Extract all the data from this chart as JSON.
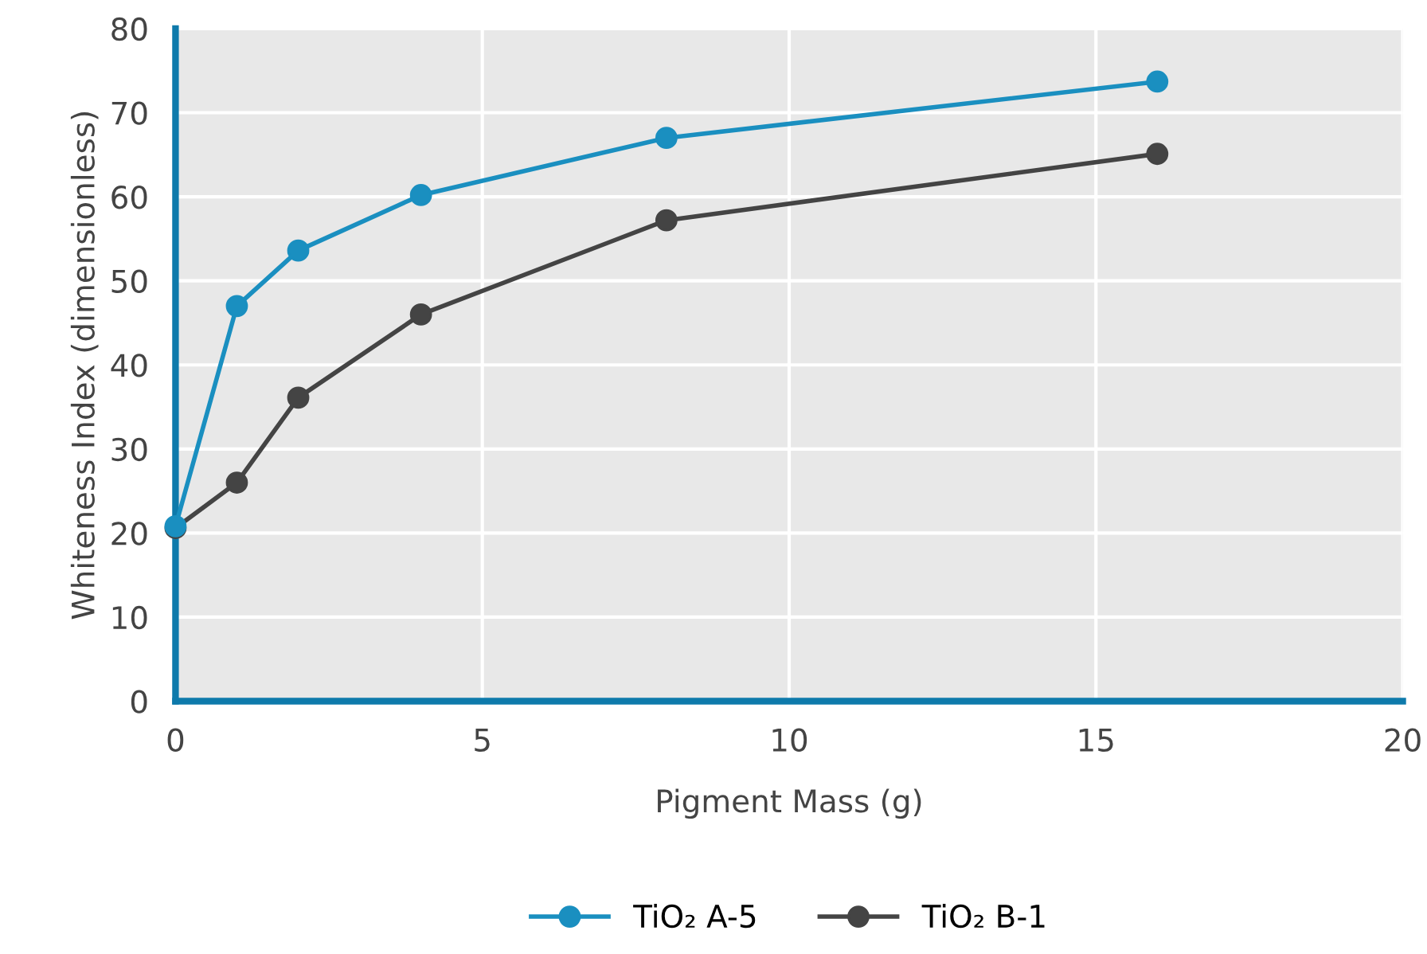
{
  "chart_data": {
    "type": "line",
    "xlabel": "Pigment Mass (g)",
    "ylabel": "Whiteness Index (dimensionless)",
    "x": [
      0,
      1,
      2,
      4,
      8,
      16
    ],
    "series": [
      {
        "name": "TiO₂ A-5",
        "color": "#1a8fc0",
        "values": [
          20.8,
          47.0,
          53.6,
          60.2,
          67.0,
          73.7
        ]
      },
      {
        "name": "TiO₂ B-1",
        "color": "#444444",
        "values": [
          20.6,
          26.0,
          36.1,
          46.0,
          57.2,
          65.1
        ]
      }
    ],
    "xlim": [
      0,
      20
    ],
    "xticks": [
      0,
      5,
      10,
      15,
      20
    ],
    "ylim": [
      0,
      80
    ],
    "yticks": [
      0,
      10,
      20,
      30,
      40,
      50,
      60,
      70,
      80
    ],
    "grid": true,
    "legend": "bottom",
    "marker": "circle",
    "line_style": "solid"
  }
}
